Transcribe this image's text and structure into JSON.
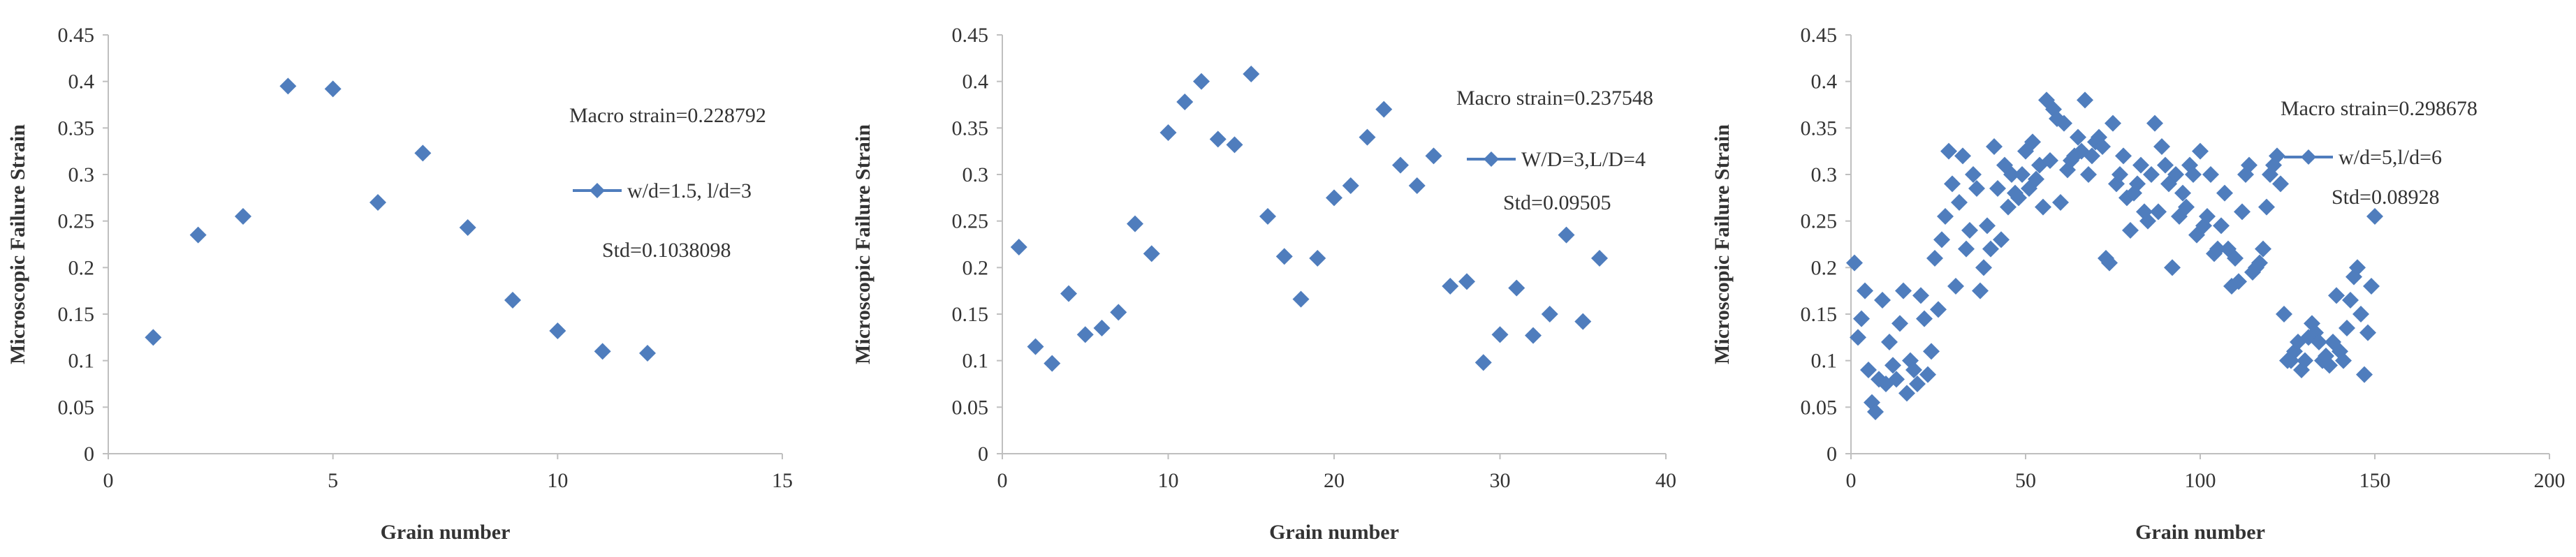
{
  "marker_color": "#4f7dbd",
  "axis_color": "#bfbfbf",
  "chart_data": [
    {
      "type": "scatter",
      "xlabel": "Grain number",
      "ylabel": "Microscopic Failure Strain",
      "xlim": [
        0,
        15
      ],
      "ylim": [
        0,
        0.45
      ],
      "xticks": [
        0,
        5,
        10,
        15
      ],
      "yticks": [
        0,
        0.05,
        0.1,
        0.15,
        0.2,
        0.25,
        0.3,
        0.35,
        0.4,
        0.45
      ],
      "grid": false,
      "legend": "right",
      "macro_label": "Macro strain=0.228792",
      "std_label": "Std=0.1038098",
      "series": [
        {
          "name": "w/d=1.5, l/d=3",
          "x": [
            1,
            2,
            3,
            4,
            5,
            6,
            7,
            8,
            9,
            10,
            11,
            12
          ],
          "y": [
            0.125,
            0.235,
            0.255,
            0.395,
            0.392,
            0.27,
            0.323,
            0.243,
            0.165,
            0.132,
            0.11,
            0.108
          ]
        }
      ]
    },
    {
      "type": "scatter",
      "xlabel": "Grain number",
      "ylabel": "Microscopic Failure Strain",
      "xlim": [
        0,
        40
      ],
      "ylim": [
        0,
        0.45
      ],
      "xticks": [
        0,
        10,
        20,
        30,
        40
      ],
      "yticks": [
        0,
        0.05,
        0.1,
        0.15,
        0.2,
        0.25,
        0.3,
        0.35,
        0.4,
        0.45
      ],
      "grid": false,
      "legend": "top-right",
      "macro_label": "Macro strain=0.237548",
      "std_label": "Std=0.09505",
      "series": [
        {
          "name": "W/D=3,L/D=4",
          "x": [
            1,
            2,
            3,
            4,
            5,
            6,
            7,
            8,
            9,
            10,
            11,
            12,
            13,
            14,
            15,
            16,
            17,
            18,
            19,
            20,
            21,
            22,
            23,
            24,
            25,
            26,
            27,
            28,
            29,
            30,
            31,
            32,
            33,
            34,
            35,
            36
          ],
          "y": [
            0.222,
            0.115,
            0.097,
            0.172,
            0.128,
            0.135,
            0.152,
            0.247,
            0.215,
            0.345,
            0.378,
            0.4,
            0.338,
            0.332,
            0.408,
            0.255,
            0.212,
            0.166,
            0.21,
            0.275,
            0.288,
            0.34,
            0.37,
            0.31,
            0.288,
            0.32,
            0.18,
            0.185,
            0.098,
            0.128,
            0.178,
            0.127,
            0.15,
            0.235,
            0.142,
            0.21
          ]
        }
      ]
    },
    {
      "type": "scatter",
      "xlabel": "Grain number",
      "ylabel": "Microscopic Failure Strain",
      "xlim": [
        0,
        200
      ],
      "ylim": [
        0,
        0.45
      ],
      "xticks": [
        0,
        50,
        100,
        150,
        200
      ],
      "yticks": [
        0,
        0.05,
        0.1,
        0.15,
        0.2,
        0.25,
        0.3,
        0.35,
        0.4,
        0.45
      ],
      "grid": false,
      "legend": "top-right",
      "macro_label": "Macro strain=0.298678",
      "std_label": "Std=0.08928",
      "series": [
        {
          "name": "w/d=5,l/d=6",
          "x": [
            1,
            2,
            3,
            4,
            5,
            6,
            7,
            8,
            9,
            10,
            11,
            12,
            13,
            14,
            15,
            16,
            17,
            18,
            19,
            20,
            21,
            22,
            23,
            24,
            25,
            26,
            27,
            28,
            29,
            30,
            31,
            32,
            33,
            34,
            35,
            36,
            37,
            38,
            39,
            40,
            41,
            42,
            43,
            44,
            45,
            46,
            47,
            48,
            49,
            50,
            51,
            52,
            53,
            54,
            55,
            56,
            57,
            58,
            59,
            60,
            61,
            62,
            63,
            64,
            65,
            66,
            67,
            68,
            69,
            70,
            71,
            72,
            73,
            74,
            75,
            76,
            77,
            78,
            79,
            80,
            81,
            82,
            83,
            84,
            85,
            86,
            87,
            88,
            89,
            90,
            91,
            92,
            93,
            94,
            95,
            96,
            97,
            98,
            99,
            100,
            101,
            102,
            103,
            104,
            105,
            106,
            107,
            108,
            109,
            110,
            111,
            112,
            113,
            114,
            115,
            116,
            117,
            118,
            119,
            120,
            121,
            122,
            123,
            124,
            125,
            126,
            127,
            128,
            129,
            130,
            131,
            132,
            133,
            134,
            135,
            136,
            137,
            138,
            139,
            140,
            141,
            142,
            143,
            144,
            145,
            146,
            147,
            148,
            149,
            150
          ],
          "y": [
            0.205,
            0.125,
            0.145,
            0.175,
            0.09,
            0.055,
            0.045,
            0.08,
            0.165,
            0.075,
            0.12,
            0.095,
            0.08,
            0.14,
            0.175,
            0.065,
            0.1,
            0.09,
            0.075,
            0.17,
            0.145,
            0.085,
            0.11,
            0.21,
            0.155,
            0.23,
            0.255,
            0.325,
            0.29,
            0.18,
            0.27,
            0.32,
            0.22,
            0.24,
            0.3,
            0.285,
            0.175,
            0.2,
            0.245,
            0.22,
            0.33,
            0.285,
            0.23,
            0.31,
            0.265,
            0.3,
            0.28,
            0.275,
            0.3,
            0.325,
            0.285,
            0.335,
            0.295,
            0.31,
            0.265,
            0.38,
            0.315,
            0.37,
            0.36,
            0.27,
            0.355,
            0.305,
            0.315,
            0.32,
            0.34,
            0.325,
            0.38,
            0.3,
            0.32,
            0.335,
            0.34,
            0.33,
            0.21,
            0.205,
            0.355,
            0.29,
            0.3,
            0.32,
            0.275,
            0.24,
            0.28,
            0.29,
            0.31,
            0.26,
            0.25,
            0.3,
            0.355,
            0.26,
            0.33,
            0.31,
            0.29,
            0.2,
            0.3,
            0.255,
            0.28,
            0.265,
            0.31,
            0.3,
            0.235,
            0.325,
            0.245,
            0.255,
            0.3,
            0.215,
            0.22,
            0.245,
            0.28,
            0.22,
            0.18,
            0.21,
            0.185,
            0.26,
            0.3,
            0.31,
            0.195,
            0.2,
            0.205,
            0.22,
            0.265,
            0.3,
            0.31,
            0.32,
            0.29,
            0.15,
            0.1,
            0.1,
            0.11,
            0.12,
            0.09,
            0.1,
            0.125,
            0.14,
            0.13,
            0.12,
            0.1,
            0.105,
            0.095,
            0.12,
            0.17,
            0.11,
            0.1,
            0.135,
            0.165,
            0.19,
            0.2,
            0.15,
            0.085,
            0.13,
            0.18,
            0.255
          ]
        }
      ]
    }
  ]
}
